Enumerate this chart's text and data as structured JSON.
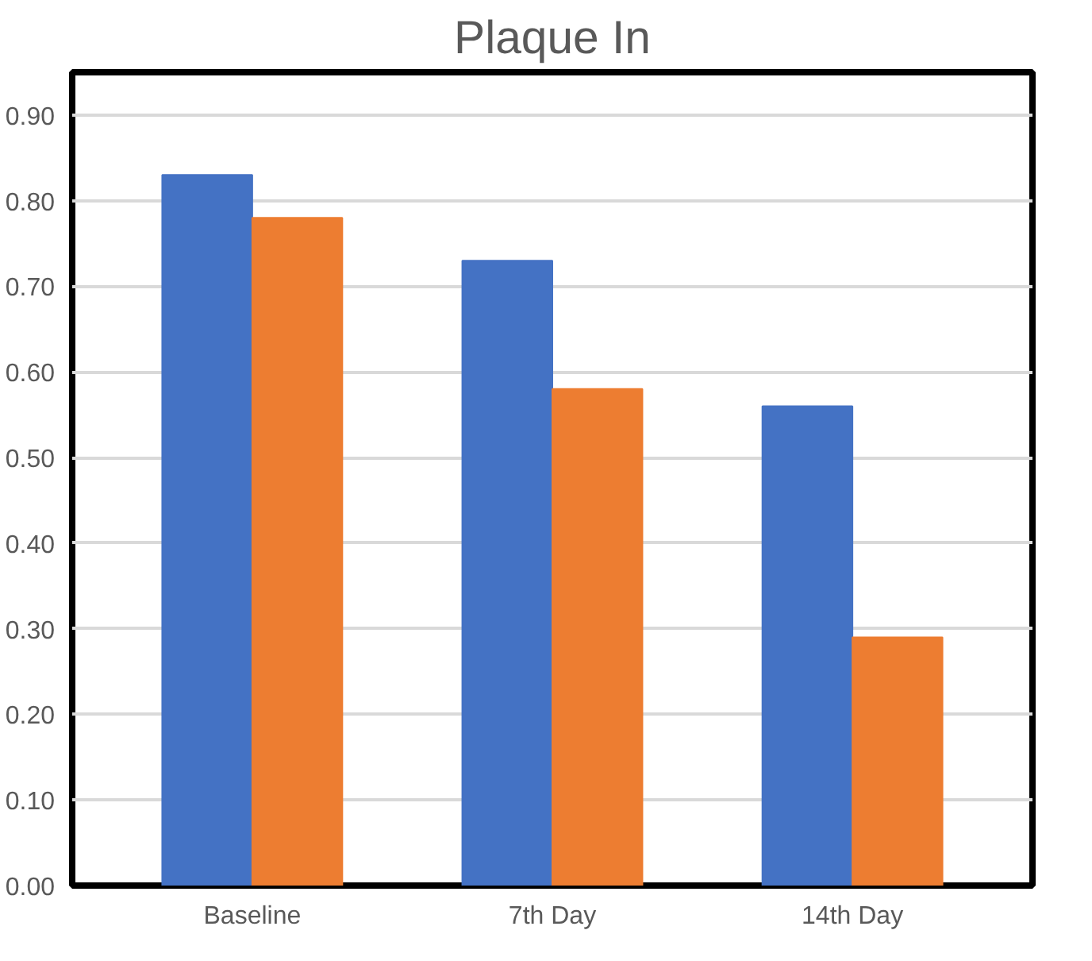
{
  "chart_data": {
    "type": "bar",
    "title": "Plaque In",
    "categories": [
      "Baseline",
      "7th Day",
      "14th Day"
    ],
    "series": [
      {
        "color": "#4472c4",
        "values": [
          0.83,
          0.73,
          0.56
        ]
      },
      {
        "color": "#ed7d31",
        "values": [
          0.78,
          0.58,
          0.29
        ]
      }
    ],
    "ylim": [
      0,
      0.95
    ],
    "yticks": [
      {
        "value": 0,
        "label": "0.00"
      },
      {
        "value": 0.1,
        "label": "0.10"
      },
      {
        "value": 0.2,
        "label": "0.20"
      },
      {
        "value": 0.3,
        "label": "0.30"
      },
      {
        "value": 0.4,
        "label": "0.40"
      },
      {
        "value": 0.5,
        "label": "0.50"
      },
      {
        "value": 0.6,
        "label": "0.60"
      },
      {
        "value": 0.7,
        "label": "0.70"
      },
      {
        "value": 0.8,
        "label": "0.80"
      },
      {
        "value": 0.9,
        "label": "0.90"
      }
    ],
    "grid": "y"
  }
}
